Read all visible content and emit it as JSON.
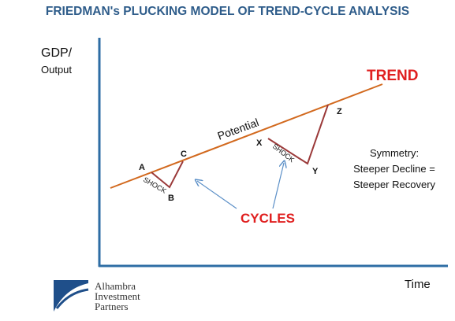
{
  "title": "FRIEDMAN's PLUCKING MODEL OF TREND-CYCLE ANALYSIS",
  "axes": {
    "y_label": "GDP/",
    "y_sublabel": "Output",
    "x_label": "Time"
  },
  "trend": {
    "label": "TREND",
    "line_label": "Potential",
    "color": "#d2691e"
  },
  "cycle_color": "#9b3a3a",
  "points": {
    "a": "A",
    "b": "B",
    "c": "C",
    "x": "X",
    "y": "Y",
    "z": "Z"
  },
  "shock_label": "SHOCK",
  "cycles_label": "CYCLES",
  "symmetry": {
    "line1": "Symmetry:",
    "line2": "Steeper Decline =",
    "line3": "Steeper Recovery"
  },
  "logo": {
    "line1": "Alhambra",
    "line2": "Investment",
    "line3": "Partners"
  },
  "colors": {
    "title": "#2e5c8a",
    "axis": "#2e6da4",
    "label_red": "#e02020",
    "arrow": "#5b8fc7"
  }
}
